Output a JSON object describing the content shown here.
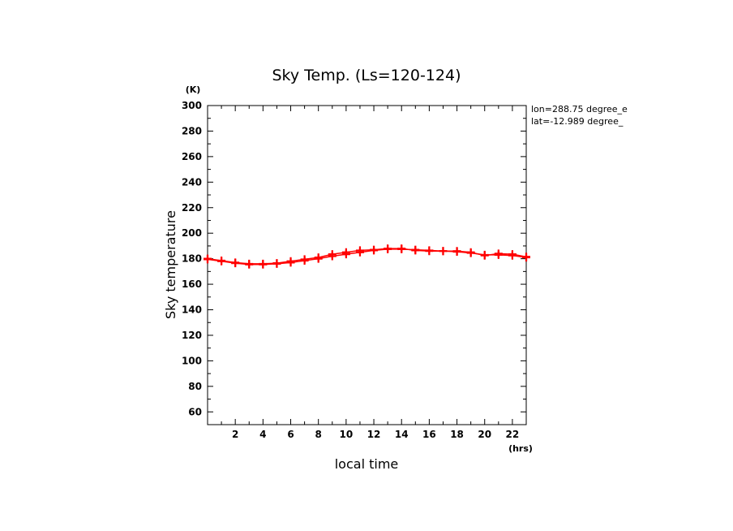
{
  "chart_data": {
    "type": "line",
    "title": "Sky Temp. (Ls=120-124)",
    "xlabel": "local time",
    "ylabel": "Sky temperature",
    "x_unit": "(hrs)",
    "y_unit": "(K)",
    "xlim": [
      0,
      23
    ],
    "ylim": [
      50,
      300
    ],
    "xticks": [
      2,
      4,
      6,
      8,
      10,
      12,
      14,
      16,
      18,
      20,
      22
    ],
    "yticks": [
      60,
      80,
      100,
      120,
      140,
      160,
      180,
      200,
      220,
      240,
      260,
      280,
      300
    ],
    "annotations": [
      "lon=288.75 degree_e",
      "lat=-12.989 degree_"
    ],
    "color": "#ff0000",
    "series": [
      {
        "x": [
          0,
          1,
          2,
          3,
          4,
          5,
          6,
          7,
          8,
          9,
          10,
          11,
          12,
          13,
          14,
          15,
          16,
          17,
          18,
          19,
          20,
          21,
          22,
          23
        ],
        "y": [
          179.5,
          178,
          176.5,
          175.5,
          175.5,
          176,
          177,
          178.5,
          180,
          182,
          183.5,
          185,
          186.5,
          187.5,
          187.5,
          187,
          186.5,
          186,
          185.5,
          184.5,
          183,
          183,
          182.5,
          181
        ]
      },
      {
        "x": [
          0,
          1,
          2,
          3,
          4,
          5,
          6,
          7,
          8,
          9,
          10,
          11,
          12,
          13,
          14,
          15,
          16,
          17,
          18,
          19,
          20,
          21,
          22,
          23
        ],
        "y": [
          180,
          178.5,
          177,
          176,
          176,
          176.5,
          178,
          179.5,
          181,
          183.5,
          185,
          186.5,
          187,
          188,
          188,
          186.5,
          186,
          186,
          186,
          185,
          182.5,
          184,
          183.5,
          181.5
        ]
      }
    ]
  }
}
